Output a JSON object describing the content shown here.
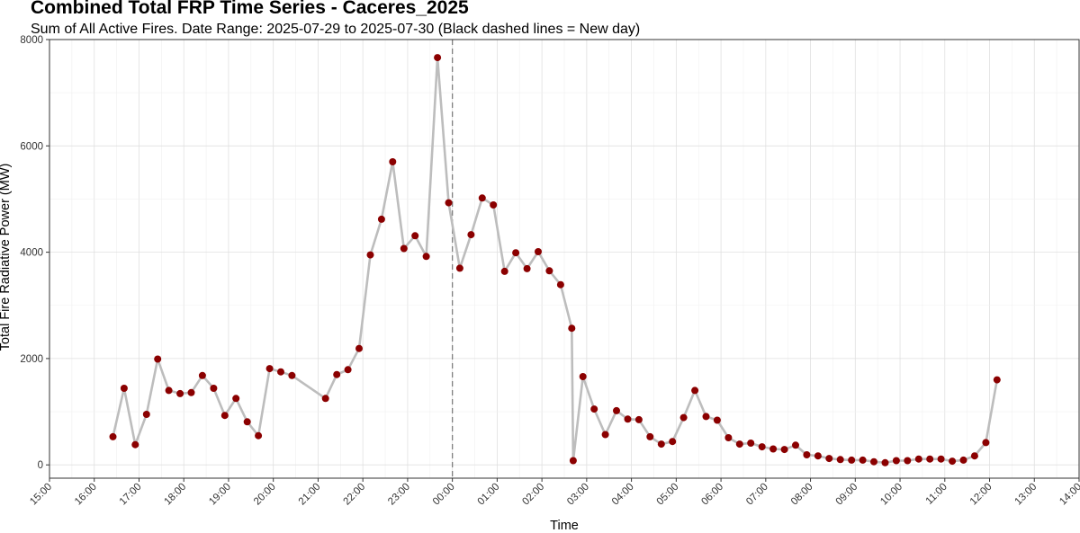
{
  "chart_data": {
    "type": "line",
    "title": "Combined Total FRP Time Series - Caceres_2025",
    "subtitle": "Sum of All Active Fires. Date Range: 2025-07-29 to 2025-07-30  (Black dashed lines = New day)",
    "xlabel": "Time",
    "ylabel": "Total Fire Radiative Power (MW)",
    "x_ticks": [
      "15:00",
      "16:00",
      "17:00",
      "18:00",
      "19:00",
      "20:00",
      "21:00",
      "22:00",
      "23:00",
      "00:00",
      "01:00",
      "02:00",
      "03:00",
      "04:00",
      "05:00",
      "06:00",
      "07:00",
      "08:00",
      "09:00",
      "10:00",
      "11:00",
      "12:00",
      "13:00",
      "14:00"
    ],
    "y_ticks": [
      "0",
      "2000",
      "4000",
      "6000",
      "8000"
    ],
    "xlim": [
      "2025-07-29 15:00",
      "2025-07-30 14:00"
    ],
    "ylim": [
      -250,
      8000
    ],
    "grid": true,
    "new_day_markers": [
      "2025-07-30 00:00"
    ],
    "colors": {
      "line": "#bdbdbd",
      "point": "#8b0000",
      "new_day_line": "#7f7f7f",
      "grid": "#e0e0e0",
      "frame": "#333333"
    },
    "series": [
      {
        "x": [
          "2025-07-29 16:25",
          "2025-07-29 16:40",
          "2025-07-29 16:55",
          "2025-07-29 17:10",
          "2025-07-29 17:25",
          "2025-07-29 17:40",
          "2025-07-29 17:55",
          "2025-07-29 18:10",
          "2025-07-29 18:25",
          "2025-07-29 18:40",
          "2025-07-29 18:55",
          "2025-07-29 19:10",
          "2025-07-29 19:25",
          "2025-07-29 19:40",
          "2025-07-29 19:55",
          "2025-07-29 20:10",
          "2025-07-29 20:25",
          "2025-07-29 21:10",
          "2025-07-29 21:25",
          "2025-07-29 21:40",
          "2025-07-29 21:55",
          "2025-07-29 22:10",
          "2025-07-29 22:25",
          "2025-07-29 22:40",
          "2025-07-29 22:55",
          "2025-07-29 23:10",
          "2025-07-29 23:25",
          "2025-07-29 23:40",
          "2025-07-29 23:55",
          "2025-07-30 00:10",
          "2025-07-30 00:25",
          "2025-07-30 00:40",
          "2025-07-30 00:55",
          "2025-07-30 01:10",
          "2025-07-30 01:25",
          "2025-07-30 01:40",
          "2025-07-30 01:55",
          "2025-07-30 02:10",
          "2025-07-30 02:25",
          "2025-07-30 02:40",
          "2025-07-30 02:42",
          "2025-07-30 02:55",
          "2025-07-30 03:10",
          "2025-07-30 03:25",
          "2025-07-30 03:40",
          "2025-07-30 03:55",
          "2025-07-30 04:10",
          "2025-07-30 04:25",
          "2025-07-30 04:40",
          "2025-07-30 04:55",
          "2025-07-30 05:10",
          "2025-07-30 05:25",
          "2025-07-30 05:40",
          "2025-07-30 05:55",
          "2025-07-30 06:10",
          "2025-07-30 06:25",
          "2025-07-30 06:40",
          "2025-07-30 06:55",
          "2025-07-30 07:10",
          "2025-07-30 07:25",
          "2025-07-30 07:40",
          "2025-07-30 07:55",
          "2025-07-30 08:10",
          "2025-07-30 08:25",
          "2025-07-30 08:40",
          "2025-07-30 08:55",
          "2025-07-30 09:10",
          "2025-07-30 09:25",
          "2025-07-30 09:40",
          "2025-07-30 09:55",
          "2025-07-30 10:10",
          "2025-07-30 10:25",
          "2025-07-30 10:40",
          "2025-07-30 10:55",
          "2025-07-30 11:10",
          "2025-07-30 11:25",
          "2025-07-30 11:40",
          "2025-07-30 11:55",
          "2025-07-30 12:10"
        ],
        "values": [
          530,
          1440,
          380,
          950,
          1990,
          1400,
          1340,
          1360,
          1680,
          1440,
          930,
          1250,
          810,
          550,
          1810,
          1750,
          1680,
          1250,
          1700,
          1790,
          2190,
          3950,
          4620,
          5700,
          4070,
          4310,
          3920,
          7660,
          4930,
          3700,
          4330,
          5020,
          4890,
          3640,
          3990,
          3690,
          4010,
          3650,
          3390,
          2570,
          80,
          1660,
          1050,
          570,
          1020,
          860,
          850,
          530,
          390,
          440,
          890,
          1400,
          910,
          840,
          510,
          390,
          410,
          340,
          300,
          290,
          370,
          190,
          170,
          120,
          100,
          90,
          90,
          60,
          40,
          80,
          80,
          110,
          110,
          110,
          70,
          90,
          170,
          420,
          1600
        ]
      }
    ]
  }
}
